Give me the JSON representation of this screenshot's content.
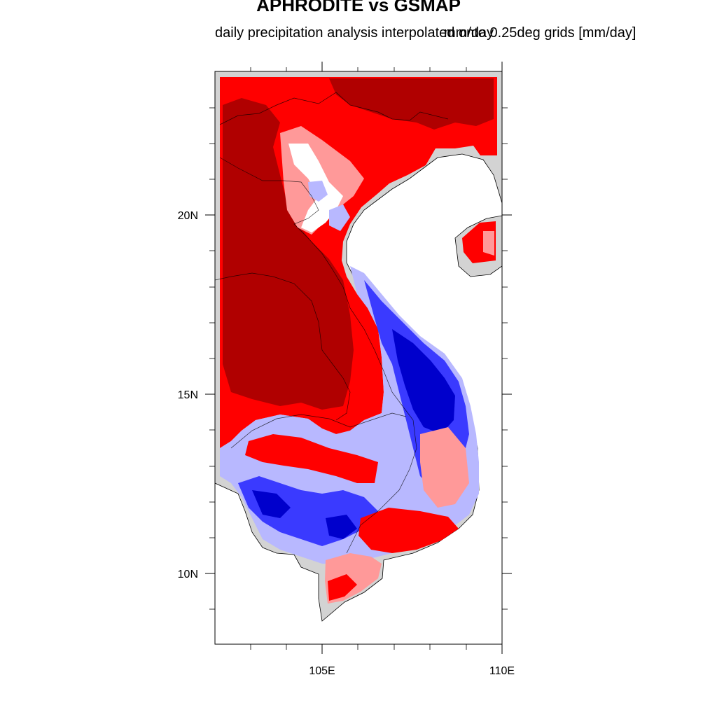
{
  "title": "APHRODITE vs GSMAP",
  "subtitle_left": "daily precipitation analysis interpolated onto 0.25deg grids [mm/day]",
  "subtitle_right": "mm/day",
  "axes": {
    "lon_range": [
      102,
      110
    ],
    "lat_range": [
      8,
      24
    ],
    "x_ticks": [
      {
        "value": 105,
        "label": "105E"
      },
      {
        "value": 110,
        "label": "110E"
      }
    ],
    "y_ticks": [
      {
        "value": 10,
        "label": "10N"
      },
      {
        "value": 15,
        "label": "15N"
      },
      {
        "value": 20,
        "label": "20N"
      }
    ]
  },
  "colors": {
    "land": "#d3d3d3",
    "ocean": "#ffffff",
    "darkred": "#b00000",
    "red": "#ff0000",
    "lightred": "#ff9999",
    "white": "#ffffff",
    "lightblue": "#b8b8ff",
    "blue": "#3a3aff",
    "darkblue": "#0000cc"
  },
  "icons": [
    "coastline-outline",
    "country-borders"
  ]
}
